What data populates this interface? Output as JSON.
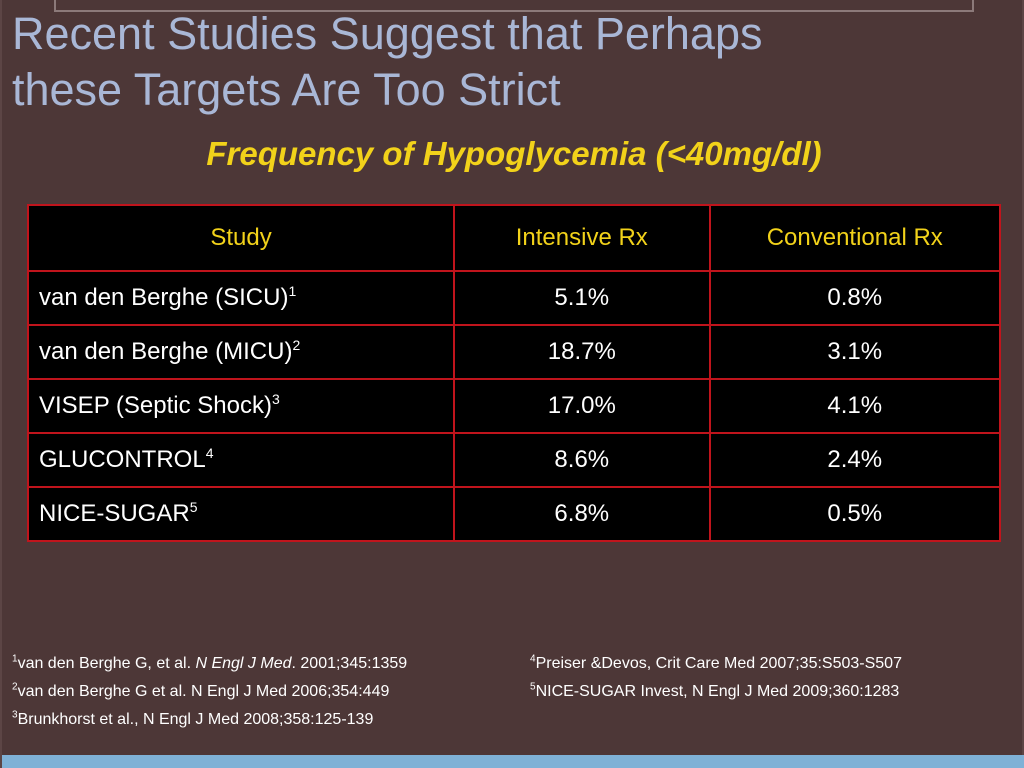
{
  "title": {
    "line1": "Recent Studies Suggest that Perhaps",
    "line2": "these Targets Are Too Strict"
  },
  "subtitle": "Frequency of Hypoglycemia (<40mg/dl)",
  "table": {
    "headers": [
      "Study",
      "Intensive Rx",
      "Conventional Rx"
    ],
    "rows": [
      {
        "study": "van den Berghe (SICU)",
        "ref": "1",
        "intensive": "5.1%",
        "conventional": "0.8%"
      },
      {
        "study": "van den Berghe (MICU)",
        "ref": "2",
        "intensive": "18.7%",
        "conventional": "3.1%"
      },
      {
        "study": "VISEP (Septic Shock)",
        "ref": "3",
        "intensive": "17.0%",
        "conventional": "4.1%"
      },
      {
        "study": "GLUCONTROL",
        "ref": "4",
        "intensive": "8.6%",
        "conventional": "2.4%"
      },
      {
        "study": "NICE-SUGAR",
        "ref": "5",
        "intensive": "6.8%",
        "conventional": "0.5%"
      }
    ]
  },
  "references": {
    "r1": {
      "num": "1",
      "pre": "van den Berghe G, et al. ",
      "journal": "N Engl J Med",
      "post": ". 2001;345:1359"
    },
    "r2": {
      "num": "2",
      "text": "van den  Berghe G et al. N Engl J Med 2006;354:449"
    },
    "r3": {
      "num": "3",
      "text": "Brunkhorst et al., N Engl J Med 2008;358:125-139"
    },
    "r4": {
      "num": "4",
      "text": "Preiser &Devos, Crit Care Med 2007;35:S503-S507"
    },
    "r5": {
      "num": "5",
      "text": "NICE-SUGAR Invest, N Engl J Med 2009;360:1283"
    }
  },
  "colors": {
    "background": "#4d3737",
    "title": "#a9b7d6",
    "subtitle": "#f2d21a",
    "table_border": "#c0141c",
    "bottom_bar": "#7fb1d6"
  }
}
